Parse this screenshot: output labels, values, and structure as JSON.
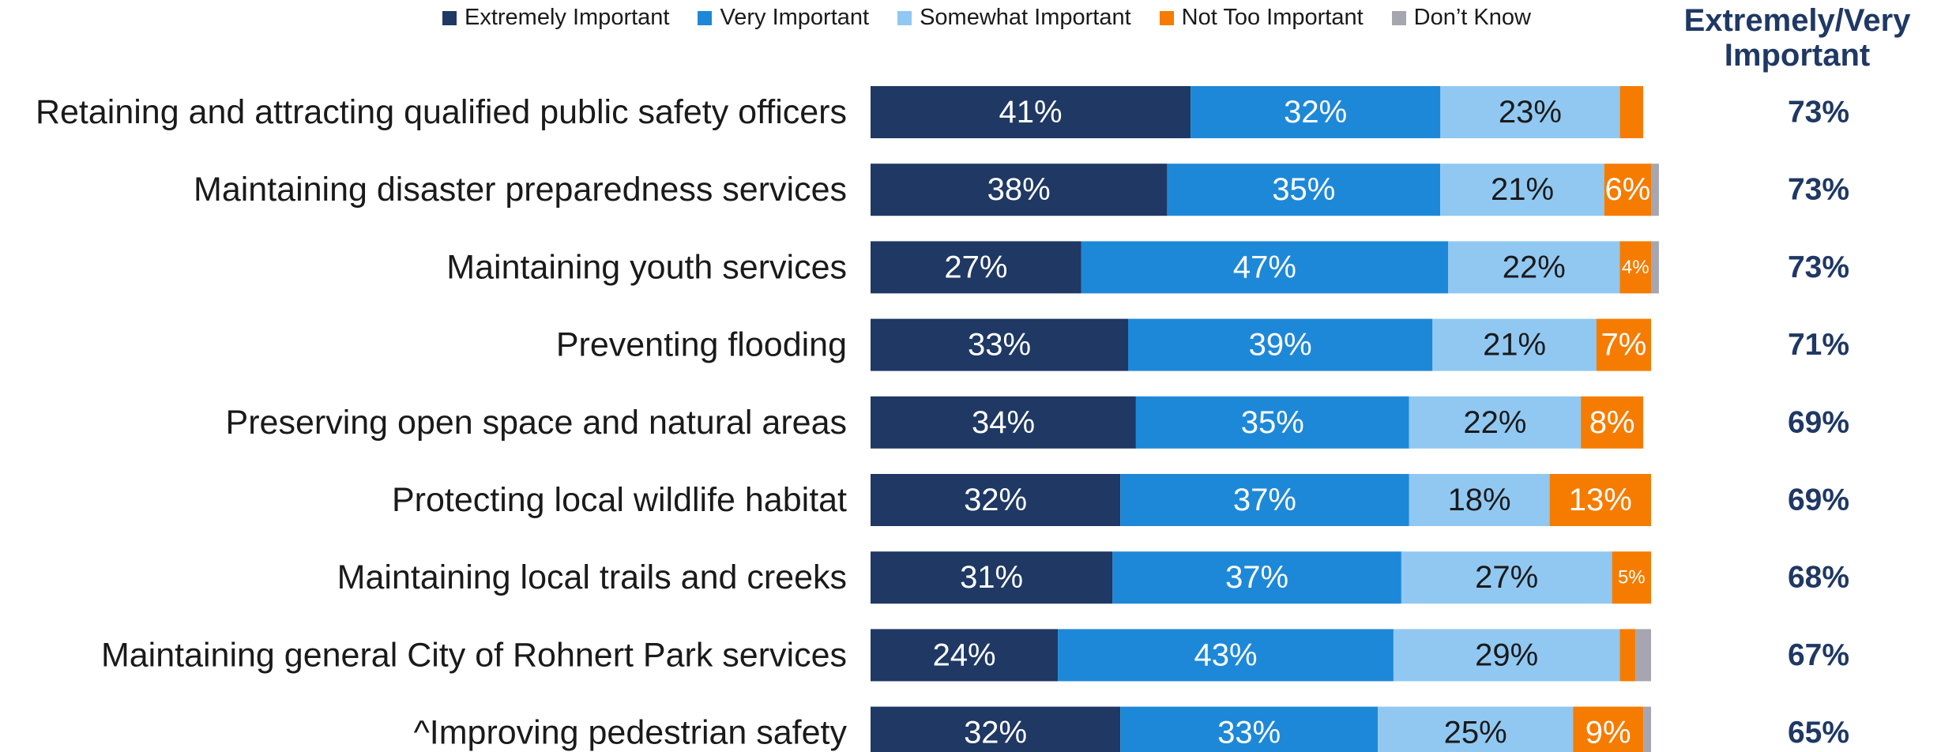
{
  "legend": {
    "items": [
      {
        "label": "Extremely Important",
        "color": "#1f3864"
      },
      {
        "label": "Very Important",
        "color": "#1e88d8"
      },
      {
        "label": "Somewhat Important",
        "color": "#90c8f2"
      },
      {
        "label": "Not Too Important",
        "color": "#f57c00"
      },
      {
        "label": "Don’t Know",
        "color": "#a6a6b0"
      }
    ]
  },
  "summary_header": "Extremely/Very Important",
  "chart_data": {
    "type": "bar",
    "orientation": "horizontal-stacked",
    "categories": [
      "Retaining and attracting qualified public safety officers",
      "Maintaining disaster preparedness services",
      "Maintaining youth services",
      "Preventing flooding",
      "Preserving open space and natural areas",
      "Protecting local wildlife habitat",
      "Maintaining local trails and creeks",
      "Maintaining general City of Rohnert Park services",
      "^Improving pedestrian safety"
    ],
    "series": [
      {
        "name": "Extremely Important",
        "color": "#1f3864",
        "values": [
          41,
          38,
          27,
          33,
          34,
          32,
          31,
          24,
          32
        ],
        "labels": [
          "41%",
          "38%",
          "27%",
          "33%",
          "34%",
          "32%",
          "31%",
          "24%",
          "32%"
        ]
      },
      {
        "name": "Very Important",
        "color": "#1e88d8",
        "values": [
          32,
          35,
          47,
          39,
          35,
          37,
          37,
          43,
          33
        ],
        "labels": [
          "32%",
          "35%",
          "47%",
          "39%",
          "35%",
          "37%",
          "37%",
          "43%",
          "33%"
        ]
      },
      {
        "name": "Somewhat Important",
        "color": "#90c8f2",
        "values": [
          23,
          21,
          22,
          21,
          22,
          18,
          27,
          29,
          25
        ],
        "labels": [
          "23%",
          "21%",
          "22%",
          "21%",
          "22%",
          "18%",
          "27%",
          "29%",
          "25%"
        ]
      },
      {
        "name": "Not Too Important",
        "color": "#f57c00",
        "values": [
          3,
          6,
          4,
          7,
          8,
          13,
          5,
          2,
          9
        ],
        "labels": [
          "",
          "6%",
          "4%",
          "7%",
          "8%",
          "13%",
          "5%",
          "",
          "9%"
        ]
      },
      {
        "name": "Don’t Know",
        "color": "#a6a6b0",
        "values": [
          0,
          1,
          1,
          0,
          0,
          0,
          0,
          2,
          1
        ],
        "labels": [
          "",
          "",
          "",
          "",
          "",
          "",
          "",
          "",
          ""
        ]
      }
    ],
    "summary": [
      "73%",
      "73%",
      "73%",
      "71%",
      "69%",
      "69%",
      "68%",
      "67%",
      "65%"
    ],
    "xlim": [
      0,
      100
    ],
    "grid": false,
    "legend_position": "top"
  }
}
